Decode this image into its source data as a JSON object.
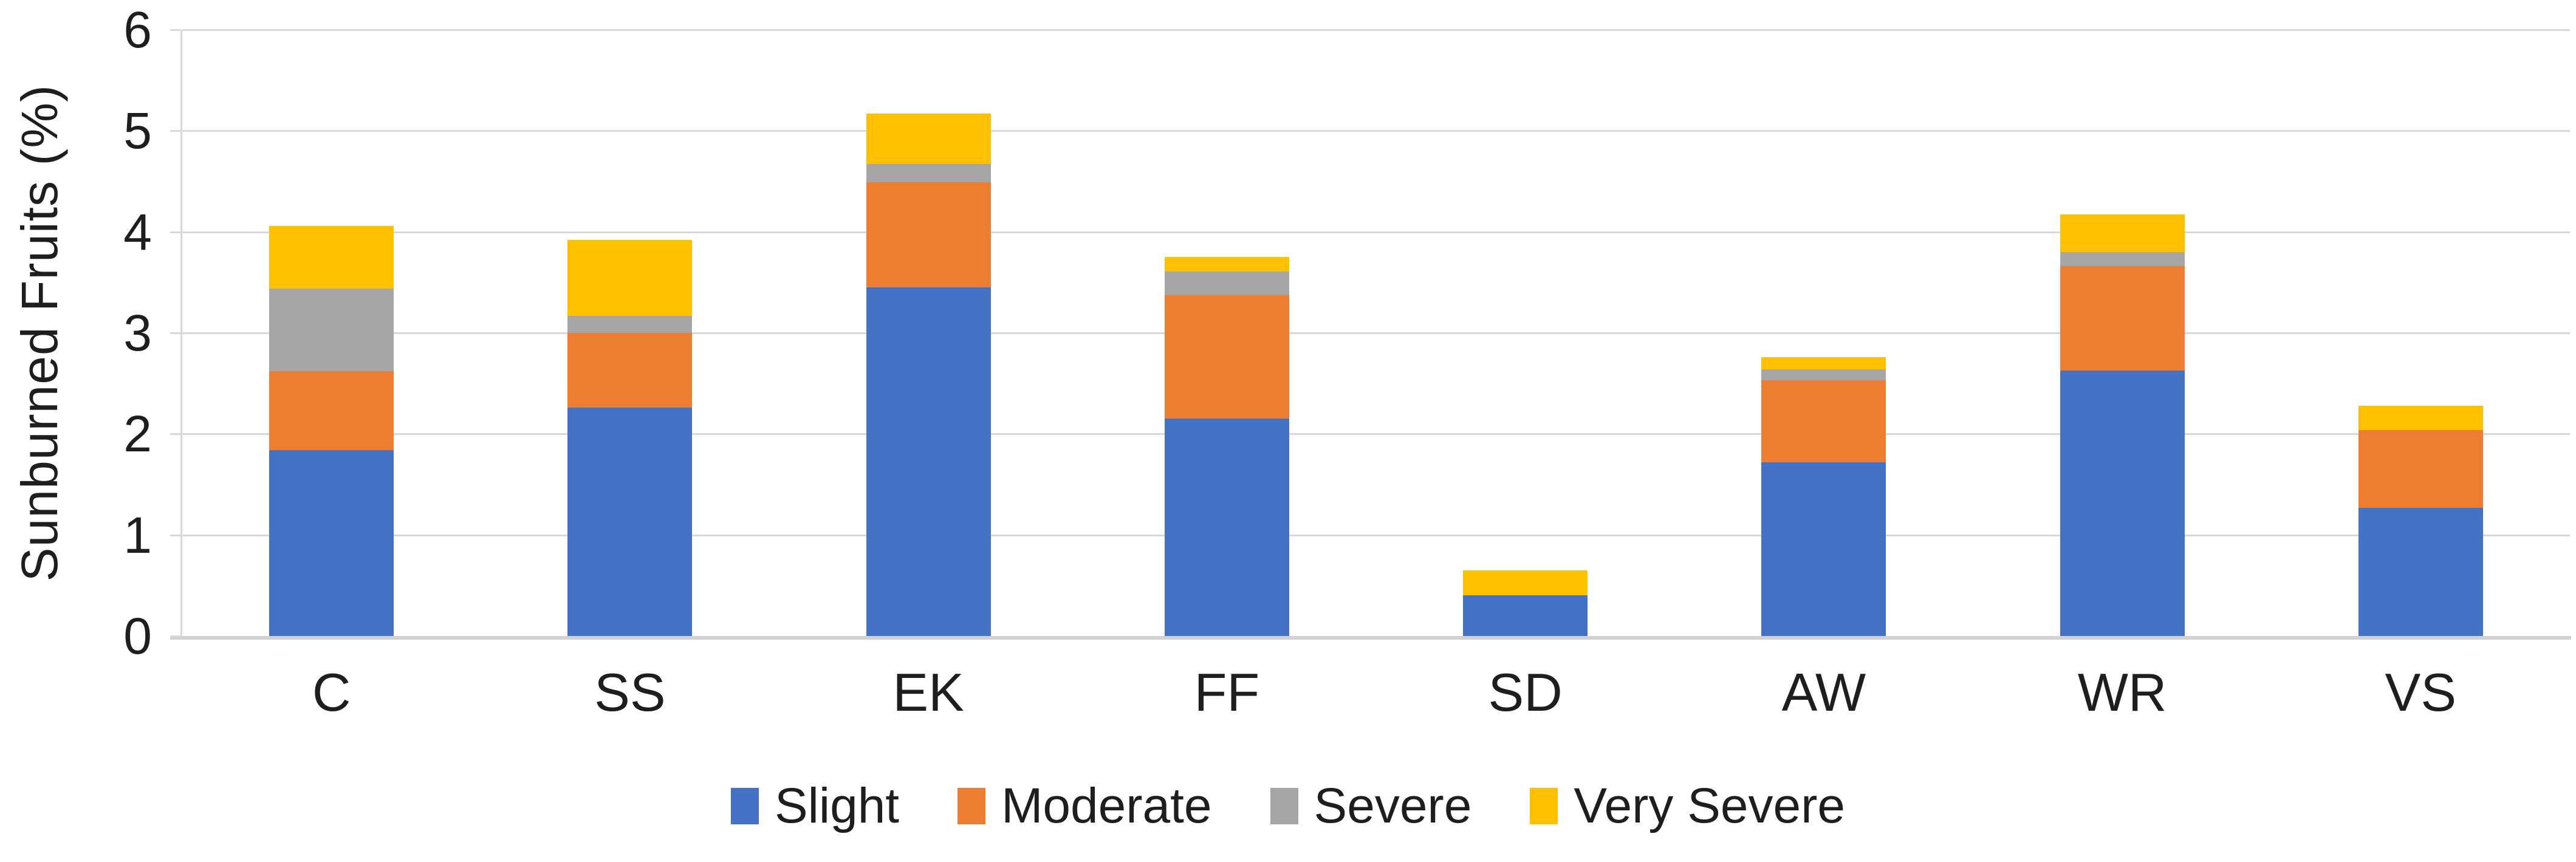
{
  "figure": {
    "ylabel": "Sunburned Fruits (%)"
  },
  "palette": {
    "slight": "#4472C4",
    "moderate": "#ED7D31",
    "severe": "#A5A5A5",
    "very_severe": "#FFC000",
    "gridline": "#D9D9D9",
    "axis_line": "#D2D2D2",
    "text": "#1E1E1E"
  },
  "chart_data": {
    "type": "bar",
    "stacked": true,
    "title": "",
    "xlabel": "",
    "ylabel": "Sunburned Fruits (%)",
    "categories": [
      "C",
      "SS",
      "EK",
      "FF",
      "SD",
      "AW",
      "WR",
      "VS"
    ],
    "series": [
      {
        "name": "Slight",
        "color": "#4472C4",
        "values": [
          1.84,
          2.26,
          3.45,
          2.15,
          0.4,
          1.72,
          2.63,
          1.27
        ]
      },
      {
        "name": "Moderate",
        "color": "#ED7D31",
        "values": [
          0.78,
          0.74,
          1.04,
          1.22,
          0.0,
          0.81,
          1.03,
          0.77
        ]
      },
      {
        "name": "Severe",
        "color": "#A5A5A5",
        "values": [
          0.82,
          0.17,
          0.18,
          0.24,
          0.0,
          0.11,
          0.14,
          0.0
        ]
      },
      {
        "name": "Very Severe",
        "color": "#FFC000",
        "values": [
          0.62,
          0.75,
          0.5,
          0.14,
          0.25,
          0.12,
          0.37,
          0.24
        ]
      }
    ],
    "stack_totals": [
      4.06,
      3.92,
      5.17,
      3.75,
      0.65,
      2.76,
      4.17,
      2.28
    ],
    "ylim": [
      0,
      6
    ],
    "yticks": [
      0,
      1,
      2,
      3,
      4,
      5,
      6
    ],
    "grid": true,
    "legend_position": "bottom",
    "legend_labels": [
      "Slight",
      "Moderate",
      "Severe",
      "Very Severe"
    ]
  }
}
